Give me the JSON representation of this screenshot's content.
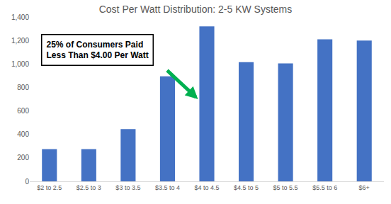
{
  "chart_data": {
    "type": "bar",
    "title": "Cost Per Watt Distribution: 2-5 KW Systems",
    "categories": [
      "$2 to 2.5",
      "$2.5 to 3",
      "$3 to 3.5",
      "$3.5 to 4",
      "$4 to 4.5",
      "$4.5 to 5",
      "$5 to 5.5",
      "$5.5 to 6",
      "$6+"
    ],
    "values": [
      275,
      275,
      445,
      895,
      1320,
      1015,
      1005,
      1210,
      1200
    ],
    "color": "#4472c4",
    "ylim": [
      0,
      1400
    ],
    "yticks": [
      0,
      200,
      400,
      600,
      800,
      {
        "value": 1000,
        "label": "1,000"
      },
      {
        "value": 1200,
        "label": "1,200"
      },
      {
        "value": 1400,
        "label": "1,400"
      }
    ],
    "grid": false,
    "annotation": "25% of Consumers Paid\nLess Than $4.00 Per Watt"
  }
}
